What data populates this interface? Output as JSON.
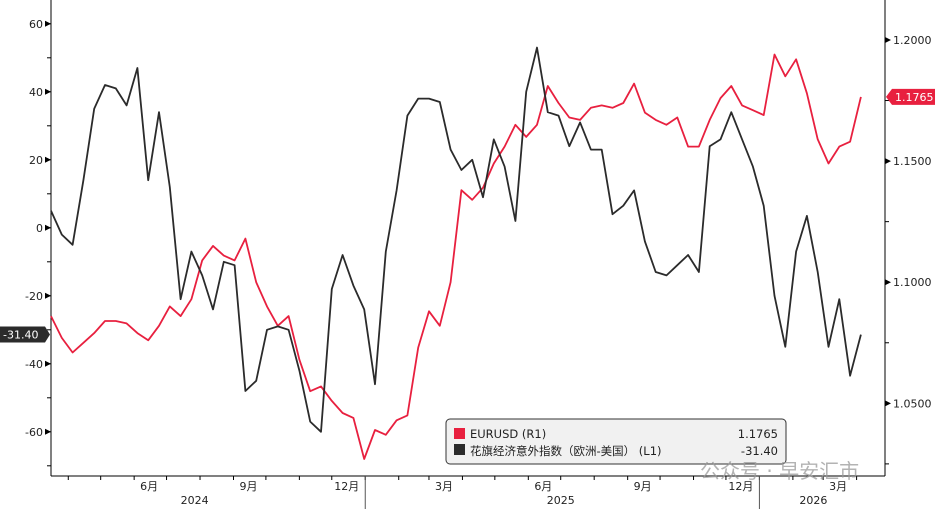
{
  "chart_data": {
    "type": "line",
    "title": "",
    "legend": {
      "placement": "bottom-center",
      "entries": [
        {
          "label": "EURUSD (R1)",
          "value": "1.1765",
          "color": "#e8203f"
        },
        {
          "label": "花旗经济意外指数（欧洲-美国） (L1)",
          "value": "-31.40",
          "color": "#2b2b2b"
        }
      ]
    },
    "left_axis": {
      "ylim": [
        -73,
        67
      ],
      "ticks": [
        "60",
        "40",
        "20",
        "0",
        "-20",
        "-40",
        "-60"
      ],
      "tick_values": [
        60,
        40,
        20,
        0,
        -20,
        -40,
        -60
      ]
    },
    "right_axis": {
      "ylim": [
        1.02,
        1.2165
      ],
      "ticks": [
        "1.2000",
        "1.1500",
        "1.1000",
        "1.0500"
      ],
      "tick_values": [
        1.2,
        1.15,
        1.1,
        1.05
      ]
    },
    "x_axis": {
      "range": [
        "2024-03-16",
        "2026-04-06"
      ],
      "month_ticks": [
        {
          "label": "6月",
          "date": "2024-06-01"
        },
        {
          "label": "9月",
          "date": "2024-09-01"
        },
        {
          "label": "12月",
          "date": "2024-12-01"
        },
        {
          "label": "3月",
          "date": "2025-03-01"
        },
        {
          "label": "6月",
          "date": "2025-06-01"
        },
        {
          "label": "9月",
          "date": "2025-09-01"
        },
        {
          "label": "12月",
          "date": "2025-12-01"
        },
        {
          "label": "3月",
          "date": "2026-03-01"
        }
      ],
      "year_labels": [
        {
          "label": "2024",
          "date": "2024-07-27"
        },
        {
          "label": "2025",
          "date": "2025-07-01"
        },
        {
          "label": "2026",
          "date": "2026-02-20"
        }
      ],
      "year_dividers": [
        "2025-01-01",
        "2026-01-01"
      ]
    },
    "x": [
      "2024-03-16",
      "2024-03-26",
      "2024-04-05",
      "2024-04-15",
      "2024-04-25",
      "2024-05-05",
      "2024-05-15",
      "2024-05-25",
      "2024-06-04",
      "2024-06-14",
      "2024-06-24",
      "2024-07-04",
      "2024-07-14",
      "2024-07-24",
      "2024-08-03",
      "2024-08-13",
      "2024-08-23",
      "2024-09-02",
      "2024-09-12",
      "2024-09-22",
      "2024-10-02",
      "2024-10-12",
      "2024-10-22",
      "2024-11-01",
      "2024-11-11",
      "2024-11-21",
      "2024-12-01",
      "2024-12-11",
      "2024-12-21",
      "2024-12-31",
      "2025-01-10",
      "2025-01-20",
      "2025-01-30",
      "2025-02-09",
      "2025-02-19",
      "2025-03-01",
      "2025-03-11",
      "2025-03-21",
      "2025-03-31",
      "2025-04-10",
      "2025-04-20",
      "2025-04-30",
      "2025-05-10",
      "2025-05-20",
      "2025-05-30",
      "2025-06-09",
      "2025-06-19",
      "2025-06-29",
      "2025-07-09",
      "2025-07-19",
      "2025-07-29",
      "2025-08-08",
      "2025-08-18",
      "2025-08-28",
      "2025-09-07",
      "2025-09-17",
      "2025-09-27",
      "2025-10-07",
      "2025-10-17",
      "2025-10-27",
      "2025-11-06",
      "2025-11-16",
      "2025-11-26",
      "2025-12-06",
      "2025-12-16",
      "2025-12-26",
      "2026-01-05",
      "2026-01-15",
      "2026-01-25",
      "2026-02-04",
      "2026-02-14",
      "2026-02-24",
      "2026-03-06",
      "2026-03-16",
      "2026-03-26",
      "2026-04-05"
    ],
    "series": [
      {
        "name": "EURUSD (R1)",
        "axis": "right",
        "color": "#e8203f",
        "last": "1.1765",
        "values": [
          1.086,
          1.077,
          1.071,
          1.075,
          1.079,
          1.084,
          1.084,
          1.083,
          1.079,
          1.076,
          1.082,
          1.09,
          1.086,
          1.093,
          1.109,
          1.115,
          1.111,
          1.109,
          1.118,
          1.1,
          1.09,
          1.082,
          1.086,
          1.068,
          1.055,
          1.057,
          1.051,
          1.046,
          1.044,
          1.027,
          1.039,
          1.037,
          1.043,
          1.045,
          1.073,
          1.088,
          1.082,
          1.1,
          1.138,
          1.134,
          1.139,
          1.149,
          1.156,
          1.165,
          1.16,
          1.165,
          1.181,
          1.174,
          1.168,
          1.167,
          1.172,
          1.173,
          1.172,
          1.174,
          1.182,
          1.17,
          1.167,
          1.165,
          1.168,
          1.156,
          1.156,
          1.167,
          1.176,
          1.181,
          1.173,
          1.171,
          1.169,
          1.194,
          1.185,
          1.192,
          1.178,
          1.159,
          1.149,
          1.156,
          1.158,
          1.1765
        ]
      },
      {
        "name": "花旗经济意外指数（欧洲-美国） (L1)",
        "axis": "left",
        "color": "#2b2b2b",
        "last": "-31.40",
        "values": [
          5,
          -2,
          -5,
          14,
          35,
          42,
          41,
          36,
          47,
          14,
          34,
          12,
          -21,
          -7,
          -14,
          -24,
          -10,
          -11,
          -48,
          -45,
          -30,
          -29,
          -30,
          -42,
          -57,
          -60,
          -18,
          -8,
          -17,
          -24,
          -46,
          -7,
          11,
          33,
          38,
          38,
          37,
          23,
          17,
          20,
          9,
          26,
          18,
          2,
          40,
          53,
          34,
          33,
          24,
          31,
          23,
          23,
          4,
          6.5,
          11,
          -4,
          -13,
          -14,
          -11,
          -8,
          -13,
          24,
          26,
          34,
          26,
          18,
          6.5,
          -20,
          -35,
          -7,
          3.5,
          -13,
          -35,
          -21,
          -43.5,
          -31.4
        ]
      }
    ]
  },
  "watermark": "公众号 · 早安汇市"
}
